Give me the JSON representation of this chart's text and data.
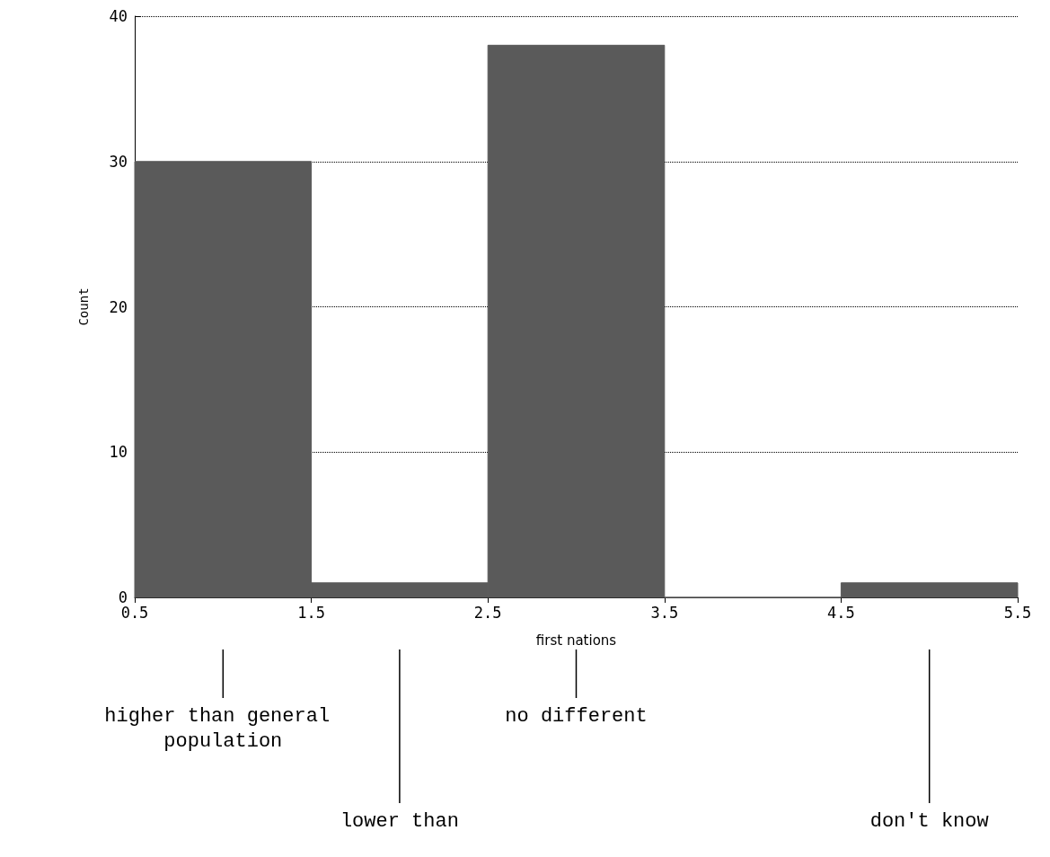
{
  "chart_data": {
    "type": "histogram",
    "xlabel": "first nations",
    "ylabel": "Count",
    "bins": [
      0.5,
      1.5,
      2.5,
      3.5,
      4.5,
      5.5
    ],
    "values": [
      30,
      1,
      38,
      0,
      1
    ],
    "color": "#5a5a5a",
    "xlim": [
      0.5,
      5.5
    ],
    "xticks": [
      0.5,
      1.5,
      2.5,
      3.5,
      4.5,
      5.5
    ],
    "ylim": [
      0,
      40
    ],
    "yticks": [
      0,
      10,
      20,
      30,
      40
    ],
    "grid": "y",
    "annotations": [
      {
        "text": "higher than general population",
        "x": 1
      },
      {
        "text": "lower than",
        "x": 2
      },
      {
        "text": "no different",
        "x": 3
      },
      {
        "text": "don't know",
        "x": 5
      }
    ]
  }
}
